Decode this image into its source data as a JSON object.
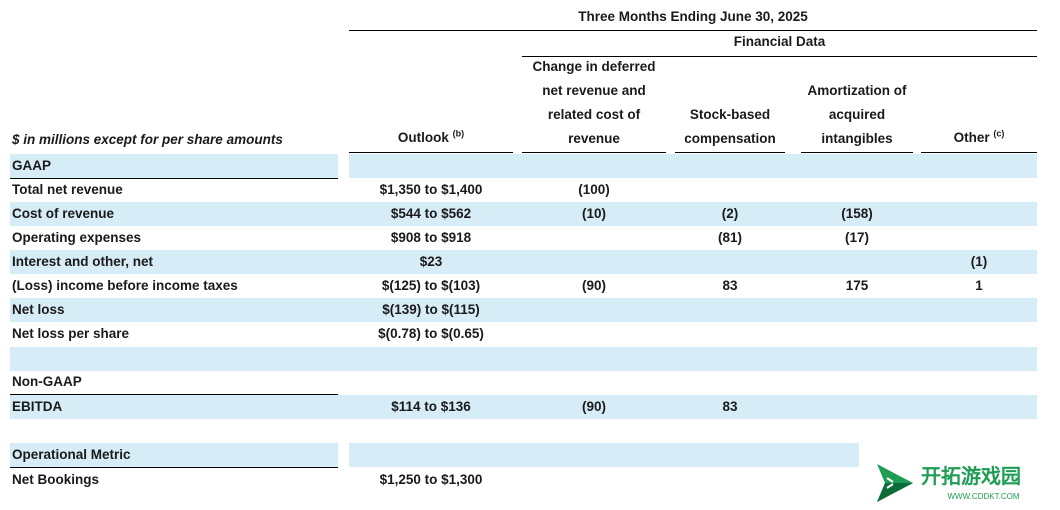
{
  "header": {
    "period": "Three Months Ending June 30, 2025",
    "group": "Financial Data",
    "units_label": "$ in millions except for per share amounts",
    "columns": {
      "outlook": "Outlook",
      "outlook_note": "(b)",
      "deferred": [
        "Change in deferred",
        "net revenue and",
        "related cost of",
        "revenue"
      ],
      "stock": [
        "Stock-based",
        "compensation"
      ],
      "amort": [
        "Amortization of",
        "acquired",
        "intangibles"
      ],
      "other": "Other",
      "other_note": "(c)"
    }
  },
  "sections": {
    "gaap": "GAAP",
    "nongaap": "Non-GAAP",
    "operational": "Operational Metric"
  },
  "rows": {
    "total_net_revenue": {
      "label": "Total net revenue",
      "outlook": "$1,350 to $1,400",
      "deferred": "(100)",
      "stock": "",
      "amort": "",
      "other": ""
    },
    "cost_of_revenue": {
      "label": "Cost of revenue",
      "outlook": "$544 to $562",
      "deferred": "(10)",
      "stock": "(2)",
      "amort": "(158)",
      "other": ""
    },
    "operating_expenses": {
      "label": "Operating expenses",
      "outlook": "$908 to $918",
      "deferred": "",
      "stock": "(81)",
      "amort": "(17)",
      "other": ""
    },
    "interest_other": {
      "label": "Interest and other, net",
      "outlook": "$23",
      "deferred": "",
      "stock": "",
      "amort": "",
      "other": "(1)"
    },
    "loss_before_taxes": {
      "label": "(Loss) income before income taxes",
      "outlook": "$(125) to $(103)",
      "deferred": "(90)",
      "stock": "83",
      "amort": "175",
      "other": "1"
    },
    "net_loss": {
      "label": "Net loss",
      "outlook": "$(139) to $(115)",
      "deferred": "",
      "stock": "",
      "amort": "",
      "other": ""
    },
    "net_loss_per_share": {
      "label": "Net loss per share",
      "outlook": "$(0.78) to $(0.65)",
      "deferred": "",
      "stock": "",
      "amort": "",
      "other": ""
    },
    "ebitda": {
      "label": "EBITDA",
      "outlook": "$114 to $136",
      "deferred": "(90)",
      "stock": "83",
      "amort": "",
      "other": ""
    },
    "net_bookings": {
      "label": "Net Bookings",
      "outlook": "$1,250 to $1,300",
      "deferred": "",
      "stock": "",
      "amort": "",
      "other": ""
    }
  },
  "watermark": {
    "title": "开拓游戏园",
    "url": "WWW.CDDKT.COM",
    "colors": {
      "green": "#1f9d55",
      "dark_green": "#0d6b3a"
    }
  },
  "colors": {
    "band": "#d6ecf7",
    "text": "#1a1a1a"
  }
}
